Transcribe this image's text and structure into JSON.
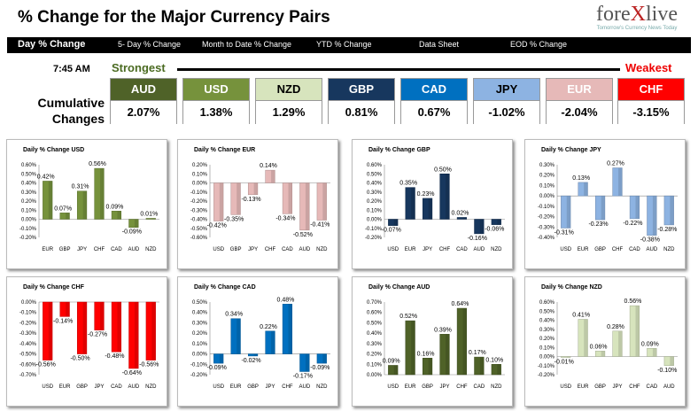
{
  "header": {
    "title": "% Change for the Major Currency Pairs",
    "logo_text": "forexlive",
    "logo_tag": "Tomorrow's Currency News Today"
  },
  "nav": [
    "Day % Change",
    "5- Day % Change",
    "Month to Date % Change",
    "YTD % Change",
    "Data Sheet",
    "EOD % Change"
  ],
  "time": "7:45 AM",
  "strongest": "Strongest",
  "weakest": "Weakest",
  "cumulative_label": "Cumulative Changes",
  "currencies": [
    {
      "code": "AUD",
      "value": "2.07%",
      "bg": "#4f6228",
      "fg": "#ffffff"
    },
    {
      "code": "USD",
      "value": "1.38%",
      "bg": "#76923c",
      "fg": "#ffffff"
    },
    {
      "code": "NZD",
      "value": "1.29%",
      "bg": "#d7e4bd",
      "fg": "#000000"
    },
    {
      "code": "GBP",
      "value": "0.81%",
      "bg": "#17375e",
      "fg": "#ffffff"
    },
    {
      "code": "CAD",
      "value": "0.67%",
      "bg": "#0070c0",
      "fg": "#ffffff"
    },
    {
      "code": "JPY",
      "value": "-1.02%",
      "bg": "#8db3e2",
      "fg": "#000000"
    },
    {
      "code": "EUR",
      "value": "-2.04%",
      "bg": "#e6b9b8",
      "fg": "#ffffff"
    },
    {
      "code": "CHF",
      "value": "-3.15%",
      "bg": "#ff0000",
      "fg": "#ffffff"
    }
  ],
  "chart_data": [
    {
      "type": "bar",
      "title": "Daily % Change USD",
      "categories": [
        "EUR",
        "GBP",
        "JPY",
        "CHF",
        "CAD",
        "AUD",
        "NZD"
      ],
      "values": [
        0.42,
        0.07,
        0.31,
        0.56,
        0.09,
        -0.09,
        0.01
      ],
      "labels": [
        "0.42%",
        "0.07%",
        "0.31%",
        "0.56%",
        "0.09%",
        "-0.09%",
        "0.01%"
      ],
      "ticks": [
        "0.60%",
        "0.50%",
        "0.40%",
        "0.30%",
        "0.20%",
        "0.10%",
        "0.00%",
        "-0.10%",
        "-0.20%"
      ],
      "ylim": [
        -0.2,
        0.6
      ],
      "color": "#76923c"
    },
    {
      "type": "bar",
      "title": "Daily % Change EUR",
      "categories": [
        "USD",
        "GBP",
        "JPY",
        "CHF",
        "CAD",
        "AUD",
        "NZD"
      ],
      "values": [
        -0.42,
        -0.35,
        -0.13,
        0.14,
        -0.34,
        -0.52,
        -0.41
      ],
      "labels": [
        "-0.42%",
        "-0.35%",
        "-0.13%",
        "0.14%",
        "-0.34%",
        "-0.52%",
        "-0.41%"
      ],
      "ticks": [
        "0.20%",
        "0.10%",
        "0.00%",
        "-0.10%",
        "-0.20%",
        "-0.30%",
        "-0.40%",
        "-0.50%",
        "-0.60%"
      ],
      "ylim": [
        -0.6,
        0.2
      ],
      "color": "#e6b9b8"
    },
    {
      "type": "bar",
      "title": "Daily % Change GBP",
      "categories": [
        "USD",
        "EUR",
        "JPY",
        "CHF",
        "CAD",
        "AUD",
        "NZD"
      ],
      "values": [
        -0.07,
        0.35,
        0.23,
        0.5,
        0.02,
        -0.16,
        -0.06
      ],
      "labels": [
        "-0.07%",
        "0.35%",
        "0.23%",
        "0.50%",
        "0.02%",
        "-0.16%",
        "-0.06%"
      ],
      "ticks": [
        "0.60%",
        "0.50%",
        "0.40%",
        "0.30%",
        "0.20%",
        "0.10%",
        "0.00%",
        "-0.10%",
        "-0.20%"
      ],
      "ylim": [
        -0.2,
        0.6
      ],
      "color": "#17375e"
    },
    {
      "type": "bar",
      "title": "Daily % Change JPY",
      "categories": [
        "USD",
        "EUR",
        "GBP",
        "CHF",
        "CAD",
        "AUD",
        "NZD"
      ],
      "values": [
        -0.31,
        0.13,
        -0.23,
        0.27,
        -0.22,
        -0.38,
        -0.28
      ],
      "labels": [
        "-0.31%",
        "0.13%",
        "-0.23%",
        "0.27%",
        "-0.22%",
        "-0.38%",
        "-0.28%"
      ],
      "ticks": [
        "0.30%",
        "0.20%",
        "0.10%",
        "0.00%",
        "-0.10%",
        "-0.20%",
        "-0.30%",
        "-0.40%"
      ],
      "ylim": [
        -0.4,
        0.3
      ],
      "color": "#8db3e2"
    },
    {
      "type": "bar",
      "title": "Daily % Change CHF",
      "categories": [
        "USD",
        "EUR",
        "GBP",
        "JPY",
        "CAD",
        "AUD",
        "NZD"
      ],
      "values": [
        -0.56,
        -0.14,
        -0.5,
        -0.27,
        -0.48,
        -0.64,
        -0.56
      ],
      "labels": [
        "-0.56%",
        "-0.14%",
        "-0.50%",
        "-0.27%",
        "-0.48%",
        "-0.64%",
        "-0.56%"
      ],
      "ticks": [
        "0.00%",
        "-0.10%",
        "-0.20%",
        "-0.30%",
        "-0.40%",
        "-0.50%",
        "-0.60%",
        "-0.70%"
      ],
      "ylim": [
        -0.7,
        0.0
      ],
      "color": "#ff0000"
    },
    {
      "type": "bar",
      "title": "Daily % Change CAD",
      "categories": [
        "USD",
        "EUR",
        "GBP",
        "JPY",
        "CHF",
        "AUD",
        "NZD"
      ],
      "values": [
        -0.09,
        0.34,
        -0.02,
        0.22,
        0.48,
        -0.17,
        -0.09
      ],
      "labels": [
        "-0.09%",
        "0.34%",
        "-0.02%",
        "0.22%",
        "0.48%",
        "-0.17%",
        "-0.09%"
      ],
      "ticks": [
        "0.50%",
        "0.40%",
        "0.30%",
        "0.20%",
        "0.10%",
        "0.00%",
        "-0.10%",
        "-0.20%"
      ],
      "ylim": [
        -0.2,
        0.5
      ],
      "color": "#0070c0"
    },
    {
      "type": "bar",
      "title": "Daily % Change AUD",
      "categories": [
        "USD",
        "EUR",
        "GBP",
        "JPY",
        "CHF",
        "CAD",
        "NZD"
      ],
      "values": [
        0.09,
        0.52,
        0.16,
        0.39,
        0.64,
        0.17,
        0.1
      ],
      "labels": [
        "0.09%",
        "0.52%",
        "0.16%",
        "0.39%",
        "0.64%",
        "0.17%",
        "0.10%"
      ],
      "ticks": [
        "0.70%",
        "0.60%",
        "0.50%",
        "0.40%",
        "0.30%",
        "0.20%",
        "0.10%",
        "0.00%"
      ],
      "ylim": [
        0.0,
        0.7
      ],
      "color": "#4f6228"
    },
    {
      "type": "bar",
      "title": "Daily % Change NZD",
      "categories": [
        "USD",
        "EUR",
        "GBP",
        "JPY",
        "CHF",
        "CAD",
        "AUD"
      ],
      "values": [
        -0.01,
        0.41,
        0.06,
        0.28,
        0.56,
        0.09,
        -0.1
      ],
      "labels": [
        "-0.01%",
        "0.41%",
        "0.06%",
        "0.28%",
        "0.56%",
        "0.09%",
        "-0.10%"
      ],
      "ticks": [
        "0.60%",
        "0.50%",
        "0.40%",
        "0.30%",
        "0.20%",
        "0.10%",
        "0.00%",
        "-0.10%",
        "-0.20%"
      ],
      "ylim": [
        -0.2,
        0.6
      ],
      "color": "#d7e4bd"
    }
  ]
}
